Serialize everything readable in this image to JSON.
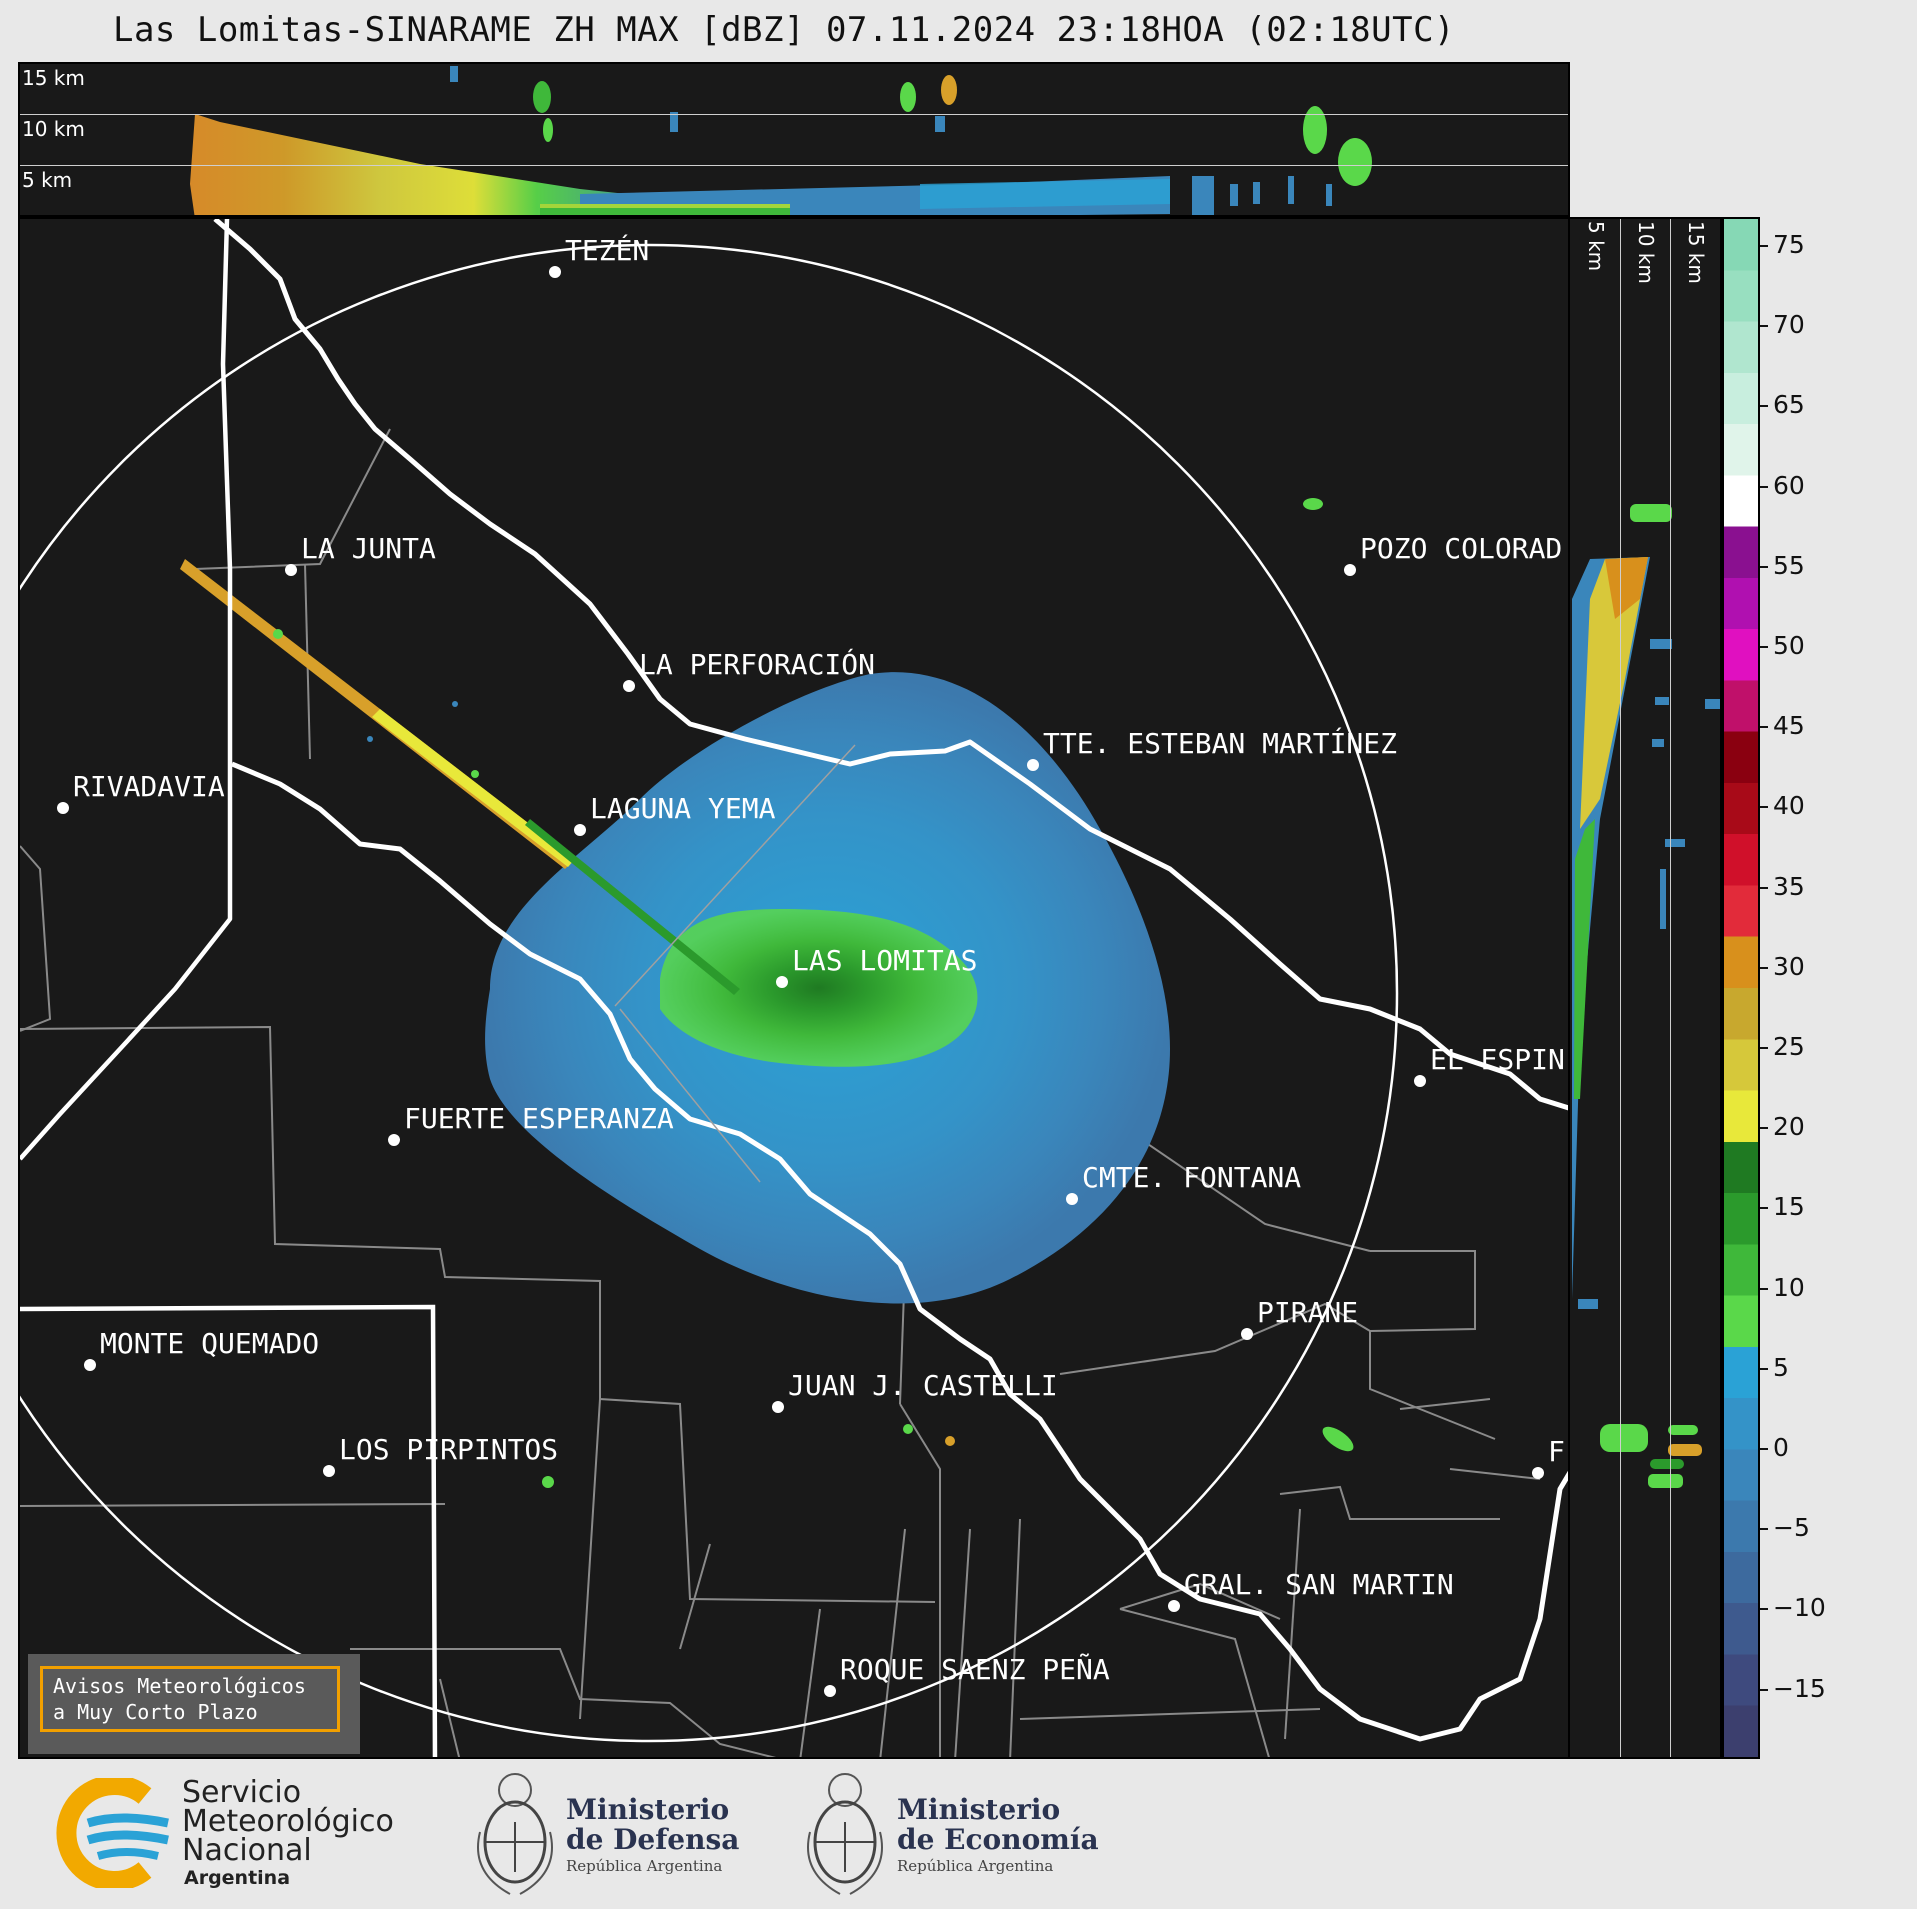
{
  "title": "Las Lomitas-SINARAME ZH MAX [dBZ] 07.11.2024 23:18HOA (02:18UTC)",
  "top_panel": {
    "height_labels": [
      "15 km",
      "10 km",
      "5 km"
    ]
  },
  "right_panel": {
    "height_labels": [
      "5 km",
      "10 km",
      "15 km"
    ]
  },
  "colorbar": {
    "unit": "dBZ",
    "tick_labels": [
      "75",
      "70",
      "65",
      "60",
      "55",
      "50",
      "45",
      "40",
      "35",
      "30",
      "25",
      "20",
      "15",
      "10",
      "5",
      "0",
      "−5",
      "−10",
      "−15"
    ],
    "colors": [
      "#3c3f6e",
      "#3e4a7e",
      "#3e5a8e",
      "#3d6a9e",
      "#3c79ad",
      "#3a86bb",
      "#3493c8",
      "#2aa2d6",
      "#5ad84a",
      "#3fb83a",
      "#2b9a2c",
      "#1f7a22",
      "#e8e83a",
      "#d6c83a",
      "#c8a82e",
      "#d8901c",
      "#e22b3a",
      "#d0102a",
      "#a80a18",
      "#8a0010",
      "#c0106a",
      "#e010c0",
      "#b010b0",
      "#8a1090",
      "#ffffff",
      "#e0f4ea",
      "#c8eede",
      "#b0e6cf",
      "#98dfc0",
      "#86d8b5"
    ]
  },
  "locations": [
    {
      "name": "TEZÉN"
    },
    {
      "name": "LA JUNTA"
    },
    {
      "name": "POZO COLORAD"
    },
    {
      "name": "LA PERFORACIÓN"
    },
    {
      "name": "TTE. ESTEBAN MARTÍNEZ"
    },
    {
      "name": "RIVADAVIA"
    },
    {
      "name": "LAGUNA YEMA"
    },
    {
      "name": "LAS LOMITAS"
    },
    {
      "name": "EL ESPIN"
    },
    {
      "name": "FUERTE ESPERANZA"
    },
    {
      "name": "CMTE. FONTANA"
    },
    {
      "name": "PIRANE"
    },
    {
      "name": "MONTE QUEMADO"
    },
    {
      "name": "JUAN J. CASTELLI"
    },
    {
      "name": "LOS PIRPINTOS"
    },
    {
      "name": "GRAL. SAN MARTIN"
    },
    {
      "name": "ROQUE SAENZ PEÑA"
    },
    {
      "name": "F"
    }
  ],
  "legend_box": {
    "line1": "Avisos Meteorológicos",
    "line2": "a Muy Corto Plazo"
  },
  "footer": {
    "smn": {
      "line1": "Servicio",
      "line2": "Meteorológico",
      "line3": "Nacional",
      "country": "Argentina"
    },
    "defensa": {
      "line1": "Ministerio",
      "line2": "de Defensa",
      "sub": "República Argentina"
    },
    "economia": {
      "line1": "Ministerio",
      "line2": "de Economía",
      "sub": "República Argentina"
    }
  }
}
